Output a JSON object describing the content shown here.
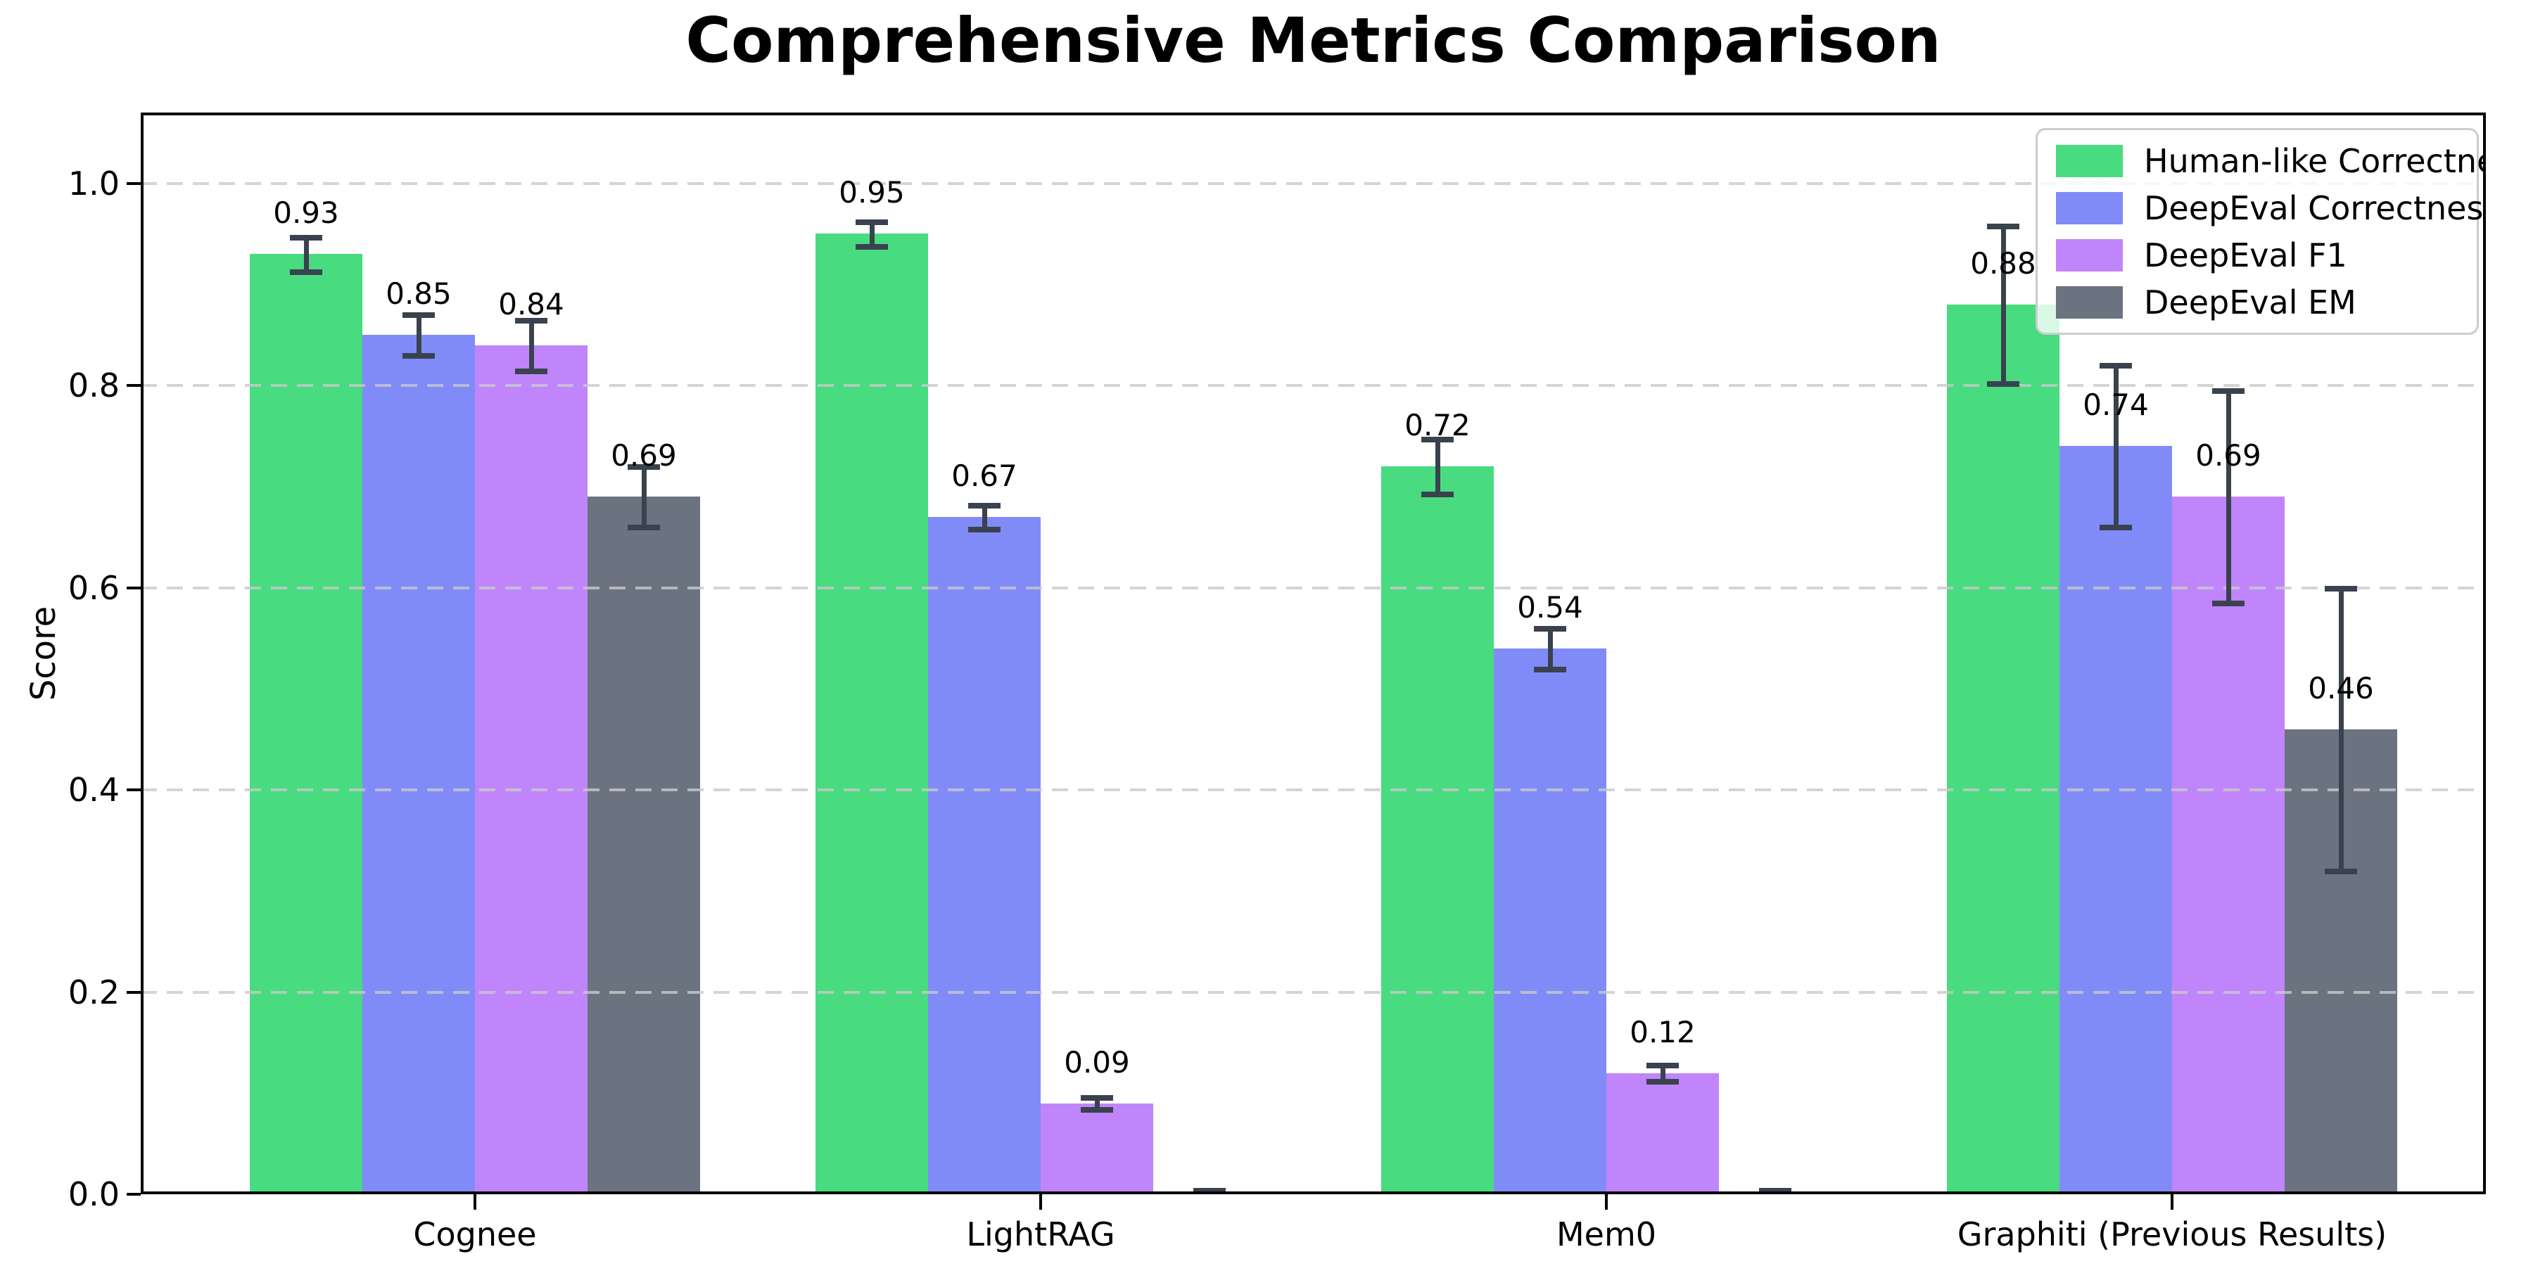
{
  "chart_data": {
    "type": "bar",
    "title": "Comprehensive Metrics Comparison",
    "xlabel": "",
    "ylabel": "Score",
    "ylim": [
      0,
      1.07
    ],
    "yticks": {
      "values": [
        0.0,
        0.2,
        0.4,
        0.6,
        0.8,
        1.0
      ],
      "labels": [
        "0.0",
        "0.2",
        "0.4",
        "0.6",
        "0.8",
        "1.0"
      ]
    },
    "categories": [
      "Cognee",
      "LightRAG",
      "Mem0",
      "Graphiti (Previous Results)"
    ],
    "series": [
      {
        "name": "Human-like Correctness",
        "color": "#48db80",
        "values": [
          0.93,
          0.95,
          0.72,
          0.88
        ],
        "errors": [
          0.017,
          0.012,
          0.027,
          0.078
        ],
        "labels": [
          "0.93",
          "0.95",
          "0.72",
          "0.88"
        ]
      },
      {
        "name": "DeepEval Correctness",
        "color": "#818bf8",
        "values": [
          0.85,
          0.67,
          0.54,
          0.74
        ],
        "errors": [
          0.02,
          0.012,
          0.02,
          0.08
        ],
        "labels": [
          "0.85",
          "0.67",
          "0.54",
          "0.74"
        ]
      },
      {
        "name": "DeepEval F1",
        "color": "#c085fb",
        "values": [
          0.84,
          0.09,
          0.12,
          0.69
        ],
        "errors": [
          0.025,
          0.006,
          0.008,
          0.105
        ],
        "labels": [
          "0.84",
          "0.09",
          "0.12",
          "0.69"
        ]
      },
      {
        "name": "DeepEval EM",
        "color": "#6b7280",
        "values": [
          0.69,
          0.0,
          0.0,
          0.46
        ],
        "errors": [
          0.03,
          0.004,
          0.004,
          0.14
        ],
        "labels": [
          "0.69",
          "",
          "",
          "0.46"
        ]
      }
    ],
    "legend": {
      "location": "upper right"
    },
    "grid": {
      "axis": "y",
      "style": "dashed"
    },
    "style": {
      "error_bar_color": "#39424e",
      "grid_color": "#c9c9c9",
      "background": "#ffffff"
    }
  }
}
